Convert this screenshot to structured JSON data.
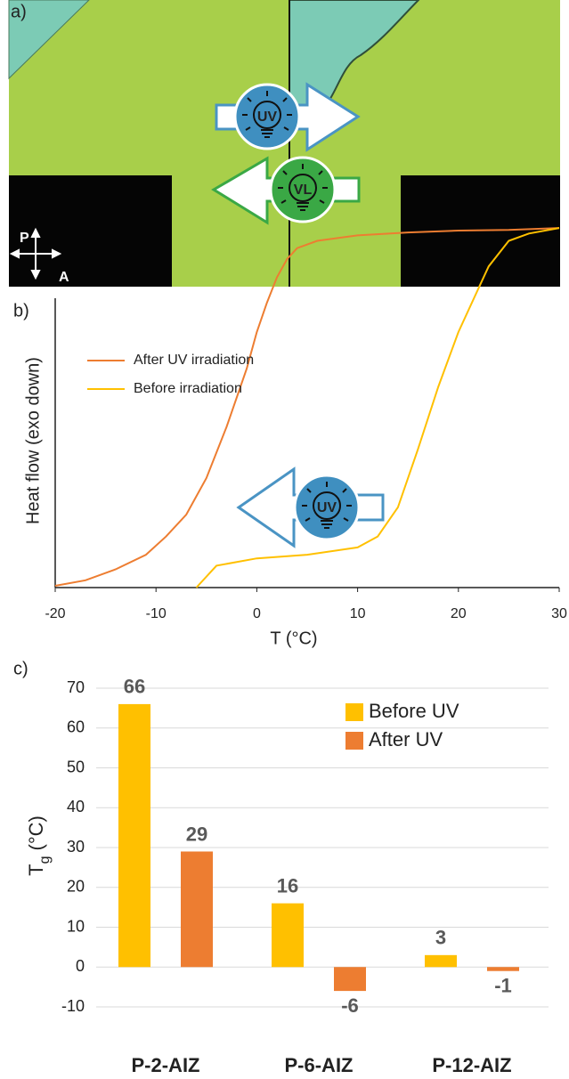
{
  "image_panel": {
    "label": "a)",
    "arrow_labels": [
      "UV",
      "VL"
    ],
    "polarizer_labels": [
      "P",
      "A"
    ]
  },
  "chart_data": [
    {
      "type": "line",
      "panel_label": "b)",
      "xlabel": "T (°C)",
      "ylabel": "Heat flow (exo down)",
      "annotation": "UV",
      "xlim": [
        -20,
        30
      ],
      "xticks": [
        -20,
        -10,
        0,
        10,
        20,
        30
      ],
      "ylim": [
        0,
        100
      ],
      "legend": "upper left",
      "series": [
        {
          "name": "After UV irradiation",
          "color": "#ed7d31",
          "x": [
            -20,
            -17,
            -14,
            -11,
            -9,
            -7,
            -5,
            -3,
            -1,
            0,
            1,
            2,
            3,
            4,
            6,
            10,
            15,
            20,
            25,
            30
          ],
          "values": [
            0.5,
            2,
            5,
            9,
            14,
            20,
            30,
            44,
            60,
            70,
            78,
            85,
            90,
            93,
            95,
            96.5,
            97.3,
            97.8,
            98,
            98.5
          ]
        },
        {
          "name": "Before irradiation",
          "color": "#ffc000",
          "x": [
            -6,
            -4,
            0,
            5,
            10,
            12,
            14,
            16,
            18,
            20,
            22,
            23,
            25,
            27,
            30
          ],
          "values": [
            0,
            6,
            8,
            9,
            11,
            14,
            22,
            38,
            55,
            70,
            82,
            88,
            95,
            97,
            98.5
          ]
        }
      ]
    },
    {
      "type": "bar",
      "panel_label": "c)",
      "ylabel": [
        "T",
        "g",
        "(°C)"
      ],
      "categories": [
        "P-2-AIZ",
        "P-6-AIZ",
        "P-12-AIZ"
      ],
      "ylim": [
        -10,
        70
      ],
      "yticks": [
        -10,
        0,
        10,
        20,
        30,
        40,
        50,
        60,
        70
      ],
      "grid": true,
      "legend": "upper right",
      "series": [
        {
          "name": "Before UV",
          "color": "#ffc000",
          "values": [
            66,
            16,
            3
          ]
        },
        {
          "name": "After UV",
          "color": "#ed7d31",
          "values": [
            29,
            -6,
            -1
          ]
        }
      ]
    }
  ]
}
